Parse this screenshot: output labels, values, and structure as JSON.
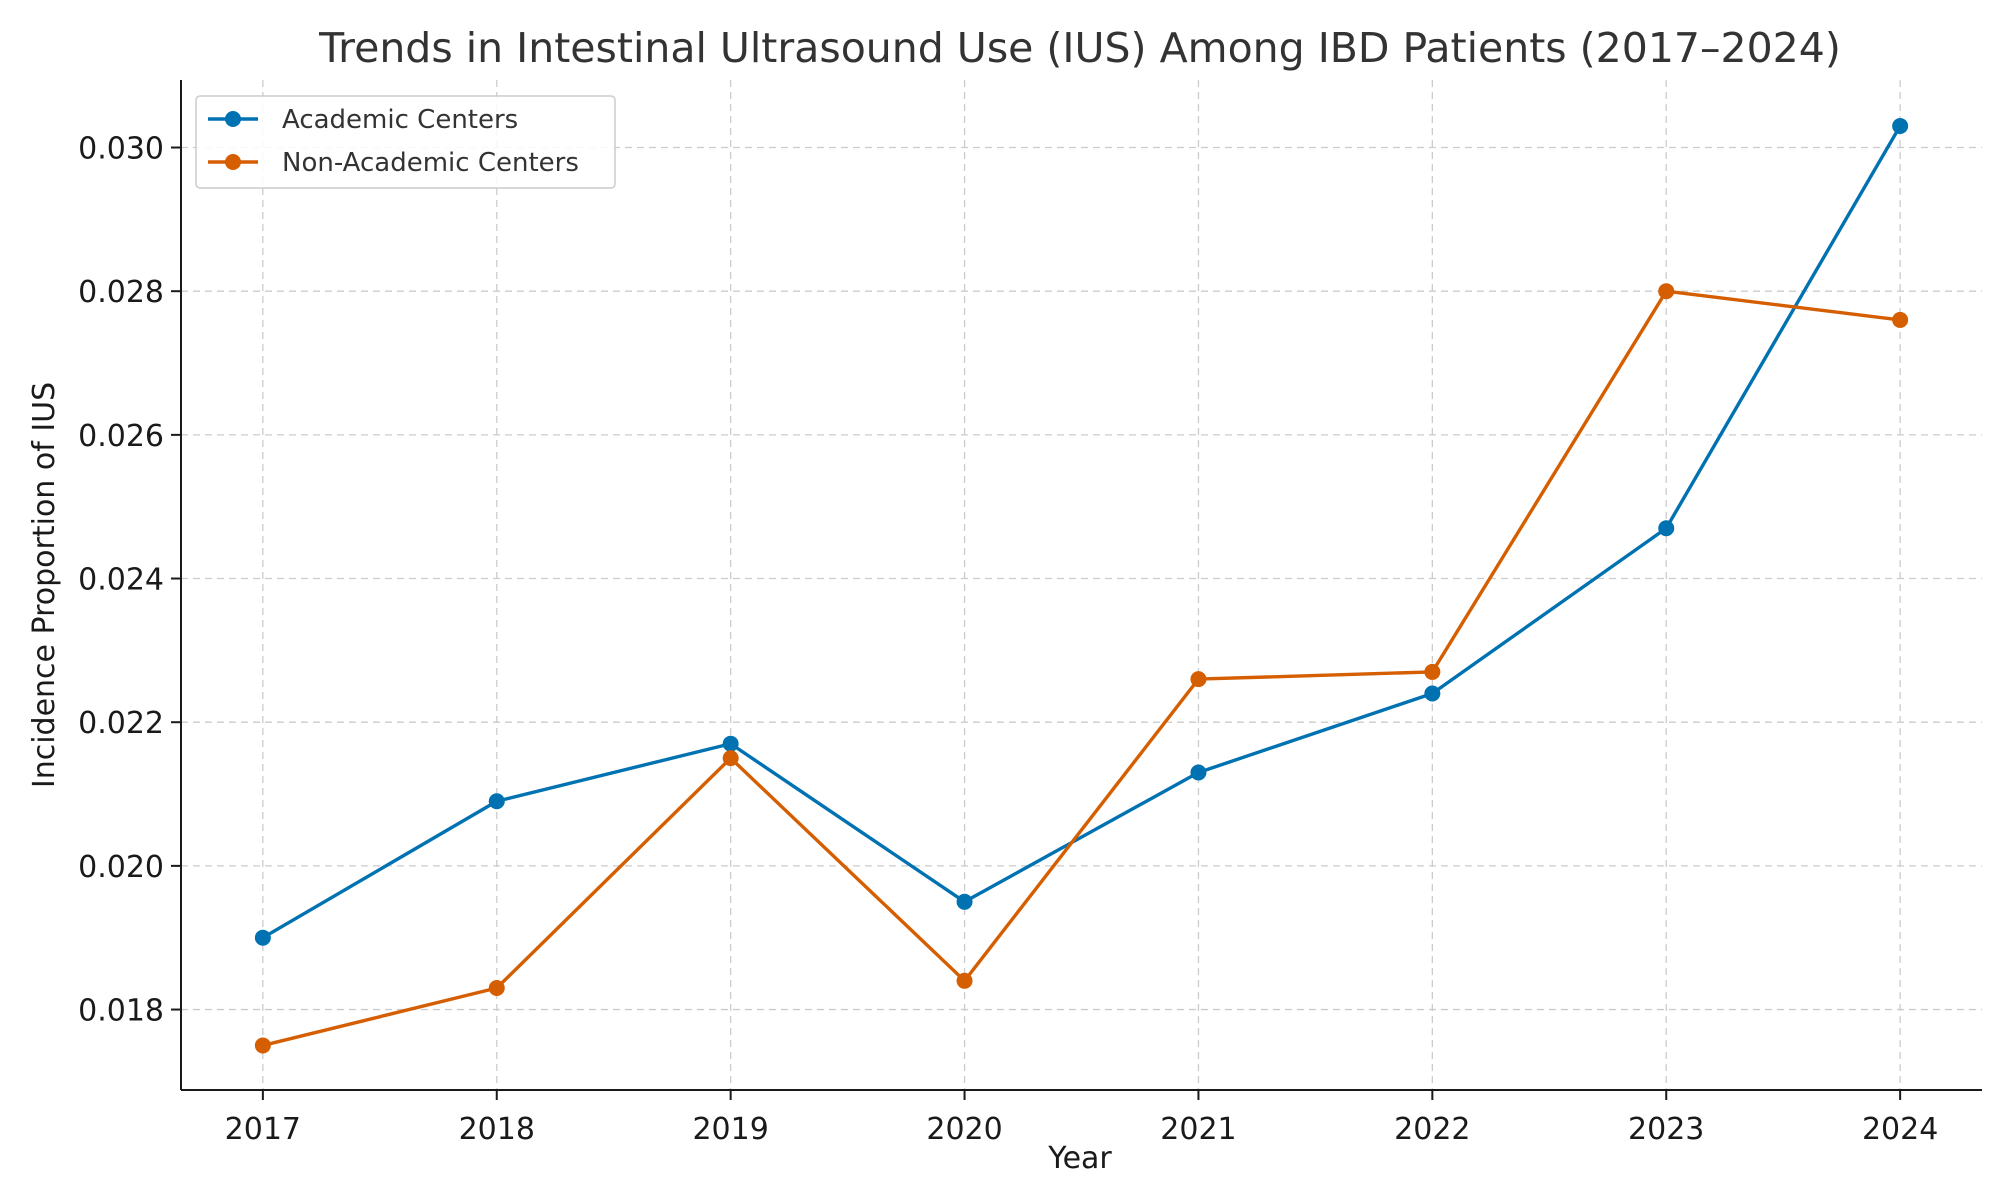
{
  "chart_data": {
    "type": "line",
    "title": "Trends in Intestinal Ultrasound Use (IUS) Among IBD Patients (2017–2024)",
    "xlabel": "Year",
    "ylabel": "Incidence Proportion of IUS",
    "x": [
      2017,
      2018,
      2019,
      2020,
      2021,
      2022,
      2023,
      2024
    ],
    "x_tick_labels": [
      "2017",
      "2018",
      "2019",
      "2020",
      "2021",
      "2022",
      "2023",
      "2024"
    ],
    "y_ticks": [
      0.018,
      0.02,
      0.022,
      0.024,
      0.026,
      0.028,
      0.03
    ],
    "y_tick_labels": [
      "0.018",
      "0.020",
      "0.022",
      "0.024",
      "0.026",
      "0.028",
      "0.030"
    ],
    "xlim": [
      2016.65,
      2024.35
    ],
    "ylim": [
      0.01688,
      0.03094
    ],
    "grid": true,
    "legend_position": "top-left",
    "series": [
      {
        "name": "Academic Centers",
        "color": "#0072B2",
        "marker": "circle",
        "values": [
          0.019,
          0.0209,
          0.0217,
          0.0195,
          0.0213,
          0.0224,
          0.0247,
          0.0303
        ]
      },
      {
        "name": "Non-Academic Centers",
        "color": "#D55E00",
        "marker": "circle",
        "values": [
          0.0175,
          0.0183,
          0.0215,
          0.0184,
          0.0226,
          0.0227,
          0.028,
          0.0276
        ]
      }
    ]
  }
}
